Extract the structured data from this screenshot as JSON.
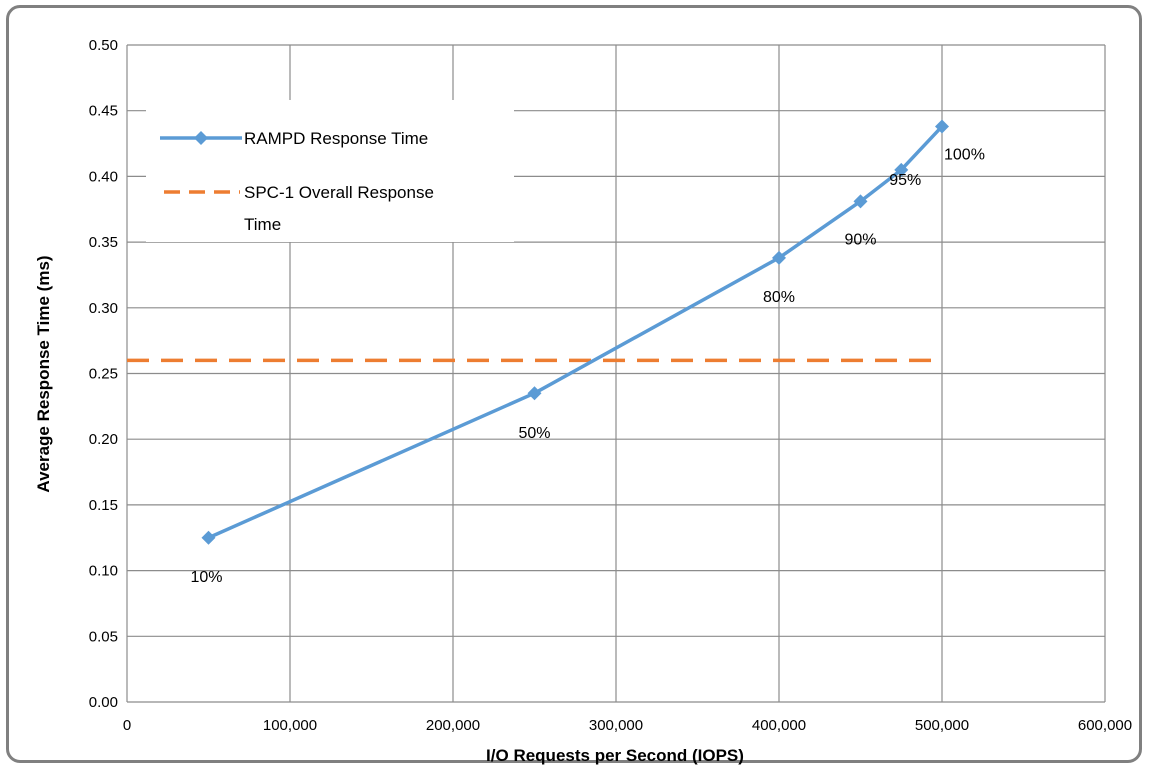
{
  "chart_data": {
    "type": "line",
    "title": "",
    "xlabel": "I/O Requests per Second (IOPS)",
    "ylabel": "Average  Response Time  (ms)",
    "xlim": [
      0,
      600000
    ],
    "ylim": [
      0,
      0.5
    ],
    "x_ticks": [
      "0",
      "100,000",
      "200,000",
      "300,000",
      "400,000",
      "500,000",
      "600,000"
    ],
    "y_ticks": [
      "0.00",
      "0.05",
      "0.10",
      "0.15",
      "0.20",
      "0.25",
      "0.30",
      "0.35",
      "0.40",
      "0.45",
      "0.50"
    ],
    "grid": true,
    "legend_position": "top-left",
    "series": [
      {
        "name": "RAMPD Response Time",
        "color": "#5B9BD5",
        "style": "solid-line-diamond-markers",
        "x": [
          50000,
          250000,
          400000,
          450000,
          475000,
          500000
        ],
        "y": [
          0.125,
          0.235,
          0.338,
          0.381,
          0.405,
          0.438
        ],
        "labels": [
          "10%",
          "50%",
          "80%",
          "90%",
          "95%",
          "100%"
        ]
      },
      {
        "name": "SPC-1 Overall Response Time",
        "color": "#ED7D31",
        "style": "dashed-line",
        "x": [
          0,
          500000
        ],
        "y": [
          0.26,
          0.26
        ]
      }
    ]
  }
}
